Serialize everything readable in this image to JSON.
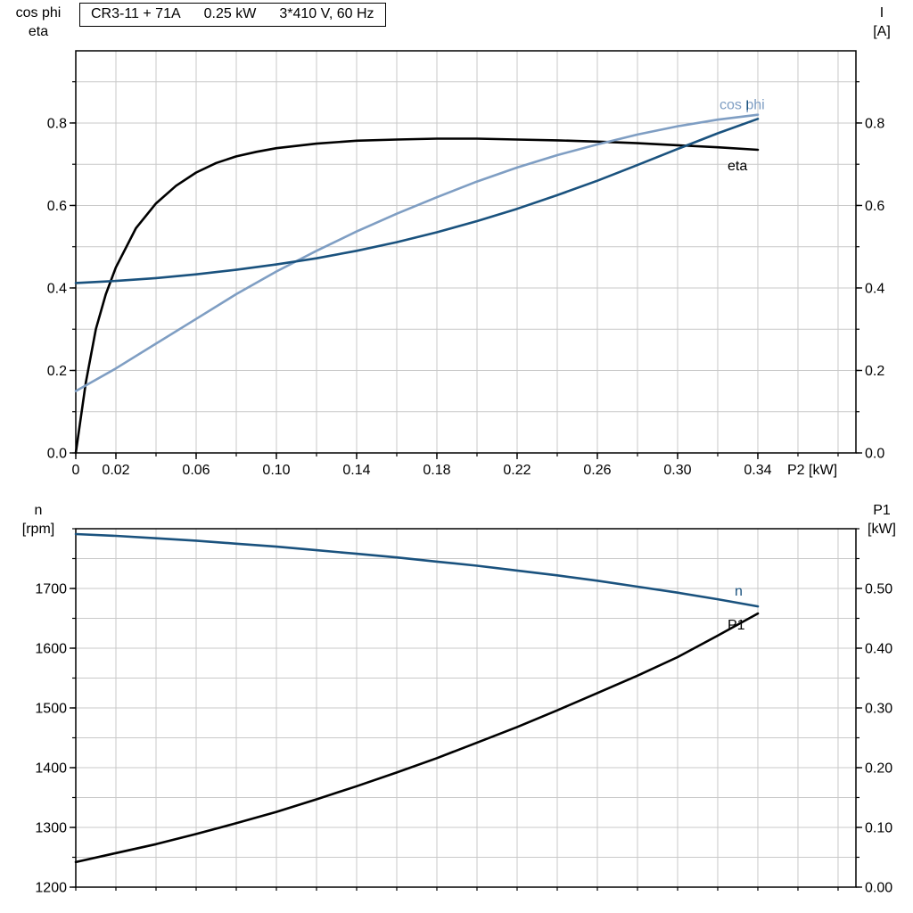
{
  "header": {
    "model": "CR3-11 + 71A",
    "power": "0.25 kW",
    "supply": "3*410 V, 60 Hz"
  },
  "corner_labels": {
    "top_left": [
      "cos phi",
      "eta"
    ],
    "top_right": [
      "I",
      "[A]"
    ],
    "bottom_left": [
      "n",
      "[rpm]"
    ],
    "bottom_right": [
      "P1",
      "[kW]"
    ]
  },
  "colors": {
    "black": "#000000",
    "dark_blue": "#1a527e",
    "light_blue": "#7f9ec3",
    "grid": "#c9c9c9",
    "frame": "#000000"
  },
  "chart_data": [
    {
      "id": "upper",
      "type": "line",
      "title": "CR3-11 + 71A  0.25 kW  3*410 V, 60 Hz",
      "legend_position": "curve-end-labels",
      "grid": true,
      "x_axis": {
        "label": "P2 [kW]",
        "min": 0,
        "max": 0.3889,
        "grid_step": 0.02,
        "ticks": [
          [
            0,
            "0"
          ],
          [
            0.02,
            "0.02"
          ],
          [
            0.06,
            "0.06"
          ],
          [
            0.1,
            "0.10"
          ],
          [
            0.14,
            "0.14"
          ],
          [
            0.18,
            "0.18"
          ],
          [
            0.22,
            "0.22"
          ],
          [
            0.26,
            "0.26"
          ],
          [
            0.3,
            "0.30"
          ],
          [
            0.34,
            "0.34"
          ]
        ]
      },
      "y_left": {
        "label": "cos phi / eta",
        "min": 0,
        "max": 0.975,
        "grid_step": 0.1,
        "ticks": [
          [
            0,
            "0.0"
          ],
          [
            0.2,
            "0.2"
          ],
          [
            0.4,
            "0.4"
          ],
          [
            0.6,
            "0.6"
          ],
          [
            0.8,
            "0.8"
          ]
        ]
      },
      "y_right": {
        "label": "I [A]",
        "min": 0,
        "max": 0.975,
        "ticks": [
          [
            0,
            "0.0"
          ],
          [
            0.2,
            "0.2"
          ],
          [
            0.4,
            "0.4"
          ],
          [
            0.6,
            "0.6"
          ],
          [
            0.8,
            "0.8"
          ]
        ]
      },
      "series": [
        {
          "id": "eta",
          "label": "eta",
          "color": "#000000",
          "axis": "left",
          "label_dx": -34,
          "label_dy": 23,
          "x": [
            0,
            0.005,
            0.01,
            0.015,
            0.02,
            0.03,
            0.04,
            0.05,
            0.06,
            0.07,
            0.08,
            0.09,
            0.1,
            0.12,
            0.14,
            0.16,
            0.18,
            0.2,
            0.22,
            0.24,
            0.26,
            0.28,
            0.3,
            0.32,
            0.34
          ],
          "y": [
            0,
            0.17,
            0.3,
            0.385,
            0.45,
            0.545,
            0.605,
            0.648,
            0.68,
            0.703,
            0.719,
            0.73,
            0.739,
            0.75,
            0.757,
            0.76,
            0.762,
            0.762,
            0.76,
            0.758,
            0.755,
            0.751,
            0.746,
            0.741,
            0.735
          ]
        },
        {
          "id": "cos-phi",
          "label": "cos phi",
          "color": "#7f9ec3",
          "axis": "left",
          "label_dx": -43,
          "label_dy": -6,
          "x": [
            0,
            0.02,
            0.04,
            0.06,
            0.08,
            0.1,
            0.12,
            0.14,
            0.16,
            0.18,
            0.2,
            0.22,
            0.24,
            0.26,
            0.28,
            0.3,
            0.32,
            0.34
          ],
          "y": [
            0.15,
            0.205,
            0.265,
            0.325,
            0.385,
            0.44,
            0.49,
            0.537,
            0.58,
            0.62,
            0.658,
            0.692,
            0.722,
            0.748,
            0.772,
            0.792,
            0.808,
            0.82
          ]
        },
        {
          "id": "current",
          "label": "I",
          "color": "#1a527e",
          "axis": "right",
          "label_dx": -14,
          "label_dy": -10,
          "x": [
            0,
            0.02,
            0.04,
            0.06,
            0.08,
            0.1,
            0.12,
            0.14,
            0.16,
            0.18,
            0.2,
            0.22,
            0.24,
            0.26,
            0.28,
            0.3,
            0.32,
            0.34
          ],
          "y": [
            0.412,
            0.417,
            0.424,
            0.433,
            0.444,
            0.457,
            0.472,
            0.49,
            0.511,
            0.535,
            0.562,
            0.592,
            0.625,
            0.66,
            0.698,
            0.737,
            0.775,
            0.81
          ]
        }
      ]
    },
    {
      "id": "lower",
      "type": "line",
      "title": "",
      "legend_position": "curve-end-labels",
      "grid": true,
      "x_axis": {
        "label": "",
        "min": 0,
        "max": 0.3889,
        "grid_step": 0.02,
        "ticks": []
      },
      "y_left": {
        "label": "n [rpm]",
        "min": 1200,
        "max": 1800,
        "grid_step": 50,
        "ticks": [
          [
            1200,
            "1200"
          ],
          [
            1300,
            "1300"
          ],
          [
            1400,
            "1400"
          ],
          [
            1500,
            "1500"
          ],
          [
            1600,
            "1600"
          ],
          [
            1700,
            "1700"
          ]
        ]
      },
      "y_right": {
        "label": "P1 [kW]",
        "min": 0,
        "max": 0.6,
        "ticks": [
          [
            0,
            "0.00"
          ],
          [
            0.1,
            "0.10"
          ],
          [
            0.2,
            "0.20"
          ],
          [
            0.3,
            "0.30"
          ],
          [
            0.4,
            "0.40"
          ],
          [
            0.5,
            "0.50"
          ]
        ]
      },
      "series": [
        {
          "id": "speed",
          "label": "n",
          "color": "#1a527e",
          "axis": "left",
          "label_dx": -26,
          "label_dy": -12,
          "x": [
            0,
            0.02,
            0.04,
            0.06,
            0.08,
            0.1,
            0.12,
            0.14,
            0.16,
            0.18,
            0.2,
            0.22,
            0.24,
            0.26,
            0.28,
            0.3,
            0.32,
            0.34
          ],
          "y": [
            1791,
            1788,
            1784,
            1780,
            1775,
            1770,
            1764,
            1758,
            1752,
            1745,
            1738,
            1730,
            1722,
            1713,
            1703,
            1693,
            1682,
            1670
          ]
        },
        {
          "id": "p1",
          "label": "P1",
          "color": "#000000",
          "axis": "right",
          "label_dx": -34,
          "label_dy": 18,
          "x": [
            0,
            0.02,
            0.04,
            0.06,
            0.08,
            0.1,
            0.12,
            0.14,
            0.16,
            0.18,
            0.2,
            0.22,
            0.24,
            0.26,
            0.28,
            0.3,
            0.32,
            0.34
          ],
          "y": [
            0.042,
            0.057,
            0.072,
            0.089,
            0.107,
            0.126,
            0.147,
            0.169,
            0.192,
            0.216,
            0.242,
            0.268,
            0.296,
            0.325,
            0.354,
            0.385,
            0.421,
            0.458
          ]
        }
      ]
    }
  ]
}
